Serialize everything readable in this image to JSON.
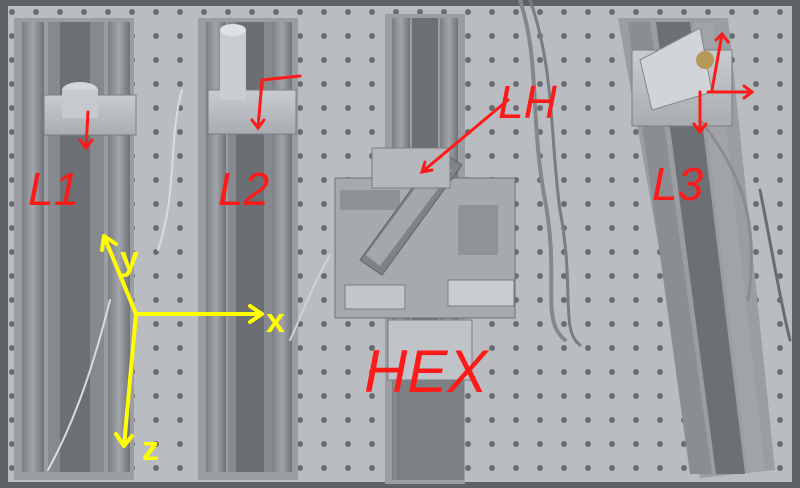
{
  "labels": {
    "l1": "L1",
    "l2": "L2",
    "lh": "LH",
    "l3": "L3",
    "hex": "HEX"
  },
  "axes": {
    "x": "x",
    "y": "y",
    "z": "z"
  },
  "colors": {
    "breadboard": "#b9bcc0",
    "rail": "#8e9296",
    "label_red": "#ff1a1a",
    "axis_yellow": "#ffff00"
  }
}
